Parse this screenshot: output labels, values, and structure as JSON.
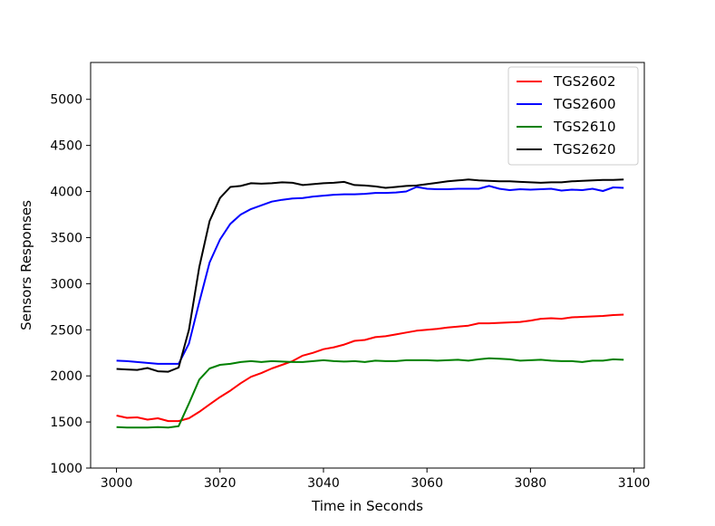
{
  "chart_data": {
    "type": "line",
    "title": "",
    "xlabel": "Time in Seconds",
    "ylabel": "Sensors Responses",
    "xlim": [
      2995,
      3102
    ],
    "ylim": [
      1000,
      5400
    ],
    "xticks": [
      3000,
      3020,
      3040,
      3060,
      3080,
      3100
    ],
    "yticks": [
      1000,
      1500,
      2000,
      2500,
      3000,
      3500,
      4000,
      4500,
      5000
    ],
    "grid": false,
    "legend_position": "top-right",
    "x": [
      3000,
      3002,
      3004,
      3006,
      3008,
      3010,
      3012,
      3014,
      3016,
      3018,
      3020,
      3022,
      3024,
      3026,
      3028,
      3030,
      3032,
      3034,
      3036,
      3038,
      3040,
      3042,
      3044,
      3046,
      3048,
      3050,
      3052,
      3054,
      3056,
      3058,
      3060,
      3062,
      3064,
      3066,
      3068,
      3070,
      3072,
      3074,
      3076,
      3078,
      3080,
      3082,
      3084,
      3086,
      3088,
      3090,
      3092,
      3094,
      3096,
      3098
    ],
    "series": [
      {
        "name": "TGS2602",
        "color": "#ff0000",
        "values": [
          1570,
          1545,
          1550,
          1525,
          1540,
          1510,
          1510,
          1540,
          1610,
          1690,
          1770,
          1840,
          1920,
          1990,
          2030,
          2080,
          2120,
          2160,
          2220,
          2250,
          2290,
          2310,
          2340,
          2380,
          2390,
          2420,
          2430,
          2450,
          2470,
          2490,
          2500,
          2510,
          2525,
          2535,
          2545,
          2570,
          2570,
          2575,
          2580,
          2585,
          2600,
          2620,
          2625,
          2620,
          2635,
          2640,
          2645,
          2650,
          2660,
          2665
        ]
      },
      {
        "name": "TGS2600",
        "color": "#0000ff",
        "values": [
          2165,
          2160,
          2150,
          2140,
          2130,
          2130,
          2130,
          2350,
          2800,
          3230,
          3480,
          3650,
          3750,
          3810,
          3850,
          3890,
          3910,
          3925,
          3930,
          3945,
          3955,
          3965,
          3970,
          3970,
          3975,
          3985,
          3985,
          3990,
          4000,
          4050,
          4030,
          4025,
          4025,
          4030,
          4030,
          4030,
          4060,
          4030,
          4015,
          4025,
          4020,
          4025,
          4030,
          4010,
          4020,
          4015,
          4030,
          4005,
          4045,
          4040
        ]
      },
      {
        "name": "TGS2610",
        "color": "#008000",
        "values": [
          1445,
          1440,
          1440,
          1440,
          1445,
          1440,
          1455,
          1700,
          1960,
          2080,
          2120,
          2130,
          2150,
          2160,
          2150,
          2160,
          2155,
          2150,
          2150,
          2160,
          2170,
          2160,
          2155,
          2160,
          2150,
          2165,
          2160,
          2160,
          2170,
          2170,
          2170,
          2165,
          2170,
          2175,
          2165,
          2180,
          2190,
          2185,
          2180,
          2165,
          2170,
          2175,
          2165,
          2160,
          2160,
          2150,
          2165,
          2165,
          2180,
          2175
        ]
      },
      {
        "name": "TGS2620",
        "color": "#000000",
        "values": [
          2075,
          2070,
          2065,
          2085,
          2050,
          2045,
          2090,
          2500,
          3180,
          3680,
          3930,
          4050,
          4060,
          4090,
          4085,
          4090,
          4100,
          4095,
          4070,
          4080,
          4090,
          4095,
          4105,
          4070,
          4065,
          4055,
          4040,
          4050,
          4060,
          4065,
          4080,
          4095,
          4110,
          4120,
          4130,
          4120,
          4115,
          4110,
          4110,
          4105,
          4100,
          4095,
          4100,
          4100,
          4110,
          4115,
          4120,
          4125,
          4125,
          4130
        ]
      }
    ]
  }
}
